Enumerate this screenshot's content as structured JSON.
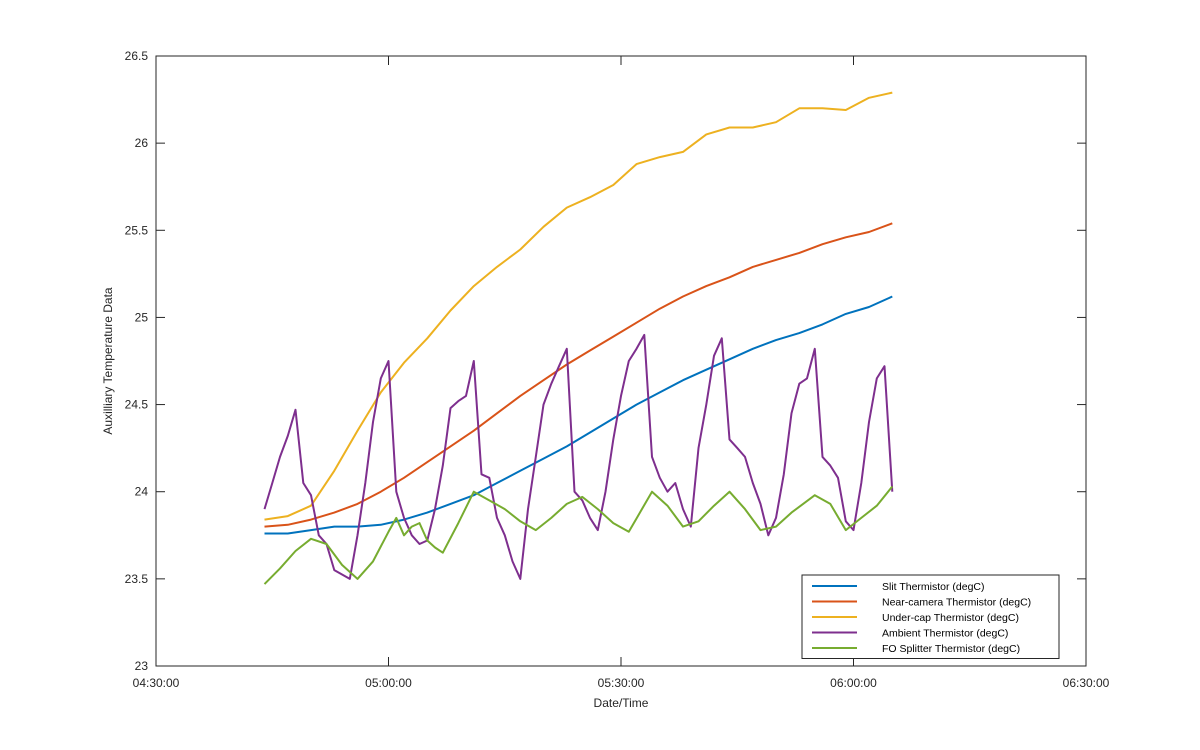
{
  "chart_data": {
    "type": "line",
    "title": "",
    "xlabel": "Date/Time",
    "ylabel": "Auxilliary Temperature Data",
    "xlim": [
      "04:30:00",
      "06:30:00"
    ],
    "ylim": [
      23,
      26.5
    ],
    "x_ticks": [
      "04:30:00",
      "05:00:00",
      "05:30:00",
      "06:00:00",
      "06:30:00"
    ],
    "y_ticks": [
      "23",
      "23.5",
      "24",
      "24.5",
      "25",
      "25.5",
      "26",
      "26.5"
    ],
    "grid": false,
    "legend_position": "bottom-right",
    "series": [
      {
        "name": "Slit Thermistor (degC)",
        "color": "#0072BD",
        "x": [
          "04:44:00",
          "04:47:00",
          "04:50:00",
          "04:53:00",
          "04:56:00",
          "04:59:00",
          "05:02:00",
          "05:05:00",
          "05:08:00",
          "05:11:00",
          "05:14:00",
          "05:17:00",
          "05:20:00",
          "05:23:00",
          "05:26:00",
          "05:29:00",
          "05:32:00",
          "05:35:00",
          "05:38:00",
          "05:41:00",
          "05:44:00",
          "05:47:00",
          "05:50:00",
          "05:53:00",
          "05:56:00",
          "05:59:00",
          "06:02:00",
          "06:05:00"
        ],
        "values": [
          23.76,
          23.76,
          23.78,
          23.8,
          23.8,
          23.81,
          23.84,
          23.88,
          23.93,
          23.98,
          24.05,
          24.12,
          24.19,
          24.26,
          24.34,
          24.42,
          24.5,
          24.57,
          24.64,
          24.7,
          24.76,
          24.82,
          24.87,
          24.91,
          24.96,
          25.02,
          25.06,
          25.12
        ]
      },
      {
        "name": "Near-camera Thermistor (degC)",
        "color": "#D95319",
        "x": [
          "04:44:00",
          "04:47:00",
          "04:50:00",
          "04:53:00",
          "04:56:00",
          "04:59:00",
          "05:02:00",
          "05:05:00",
          "05:08:00",
          "05:11:00",
          "05:14:00",
          "05:17:00",
          "05:20:00",
          "05:23:00",
          "05:26:00",
          "05:29:00",
          "05:32:00",
          "05:35:00",
          "05:38:00",
          "05:41:00",
          "05:44:00",
          "05:47:00",
          "05:50:00",
          "05:53:00",
          "05:56:00",
          "05:59:00",
          "06:02:00",
          "06:05:00"
        ],
        "values": [
          23.8,
          23.81,
          23.84,
          23.88,
          23.93,
          24.0,
          24.08,
          24.17,
          24.26,
          24.35,
          24.45,
          24.55,
          24.64,
          24.73,
          24.81,
          24.89,
          24.97,
          25.05,
          25.12,
          25.18,
          25.23,
          25.29,
          25.33,
          25.37,
          25.42,
          25.46,
          25.49,
          25.54
        ]
      },
      {
        "name": "Under-cap Thermistor (degC)",
        "color": "#EDB120",
        "x": [
          "04:44:00",
          "04:47:00",
          "04:50:00",
          "04:53:00",
          "04:56:00",
          "04:59:00",
          "05:02:00",
          "05:05:00",
          "05:08:00",
          "05:11:00",
          "05:14:00",
          "05:17:00",
          "05:20:00",
          "05:23:00",
          "05:26:00",
          "05:29:00",
          "05:32:00",
          "05:35:00",
          "05:38:00",
          "05:41:00",
          "05:44:00",
          "05:47:00",
          "05:50:00",
          "05:53:00",
          "05:56:00",
          "05:59:00",
          "06:02:00",
          "06:05:00"
        ],
        "values": [
          23.84,
          23.86,
          23.92,
          24.12,
          24.35,
          24.57,
          24.74,
          24.88,
          25.04,
          25.18,
          25.29,
          25.39,
          25.52,
          25.63,
          25.69,
          25.76,
          25.88,
          25.92,
          25.95,
          26.05,
          26.09,
          26.09,
          26.12,
          26.2,
          26.2,
          26.19,
          26.26,
          26.29
        ]
      },
      {
        "name": "Ambient Thermistor (degC)",
        "color": "#7E2F8E",
        "x": [
          "04:44:00",
          "04:45:00",
          "04:46:00",
          "04:47:00",
          "04:48:00",
          "04:49:00",
          "04:50:00",
          "04:51:00",
          "04:52:00",
          "04:53:00",
          "04:55:00",
          "04:56:00",
          "04:57:00",
          "04:58:00",
          "04:59:00",
          "05:00:00",
          "05:01:00",
          "05:02:00",
          "05:03:00",
          "05:04:00",
          "05:05:00",
          "05:06:00",
          "05:07:00",
          "05:08:00",
          "05:09:00",
          "05:10:00",
          "05:11:00",
          "05:12:00",
          "05:13:00",
          "05:14:00",
          "05:15:00",
          "05:16:00",
          "05:17:00",
          "05:18:00",
          "05:19:00",
          "05:20:00",
          "05:21:00",
          "05:22:00",
          "05:23:00",
          "05:24:00",
          "05:25:00",
          "05:26:00",
          "05:27:00",
          "05:28:00",
          "05:29:00",
          "05:30:00",
          "05:31:00",
          "05:32:00",
          "05:33:00",
          "05:34:00",
          "05:35:00",
          "05:36:00",
          "05:37:00",
          "05:38:00",
          "05:39:00",
          "05:40:00",
          "05:41:00",
          "05:42:00",
          "05:43:00",
          "05:44:00",
          "05:45:00",
          "05:46:00",
          "05:47:00",
          "05:48:00",
          "05:49:00",
          "05:50:00",
          "05:51:00",
          "05:52:00",
          "05:53:00",
          "05:54:00",
          "05:55:00",
          "05:56:00",
          "05:57:00",
          "05:58:00",
          "05:59:00",
          "06:00:00",
          "06:01:00",
          "06:02:00",
          "06:03:00",
          "06:04:00",
          "06:05:00"
        ],
        "values": [
          23.9,
          24.05,
          24.2,
          24.32,
          24.47,
          24.05,
          23.98,
          23.75,
          23.7,
          23.55,
          23.5,
          23.75,
          24.05,
          24.4,
          24.65,
          24.75,
          24.0,
          23.85,
          23.75,
          23.7,
          23.72,
          23.9,
          24.15,
          24.48,
          24.52,
          24.55,
          24.75,
          24.1,
          24.08,
          23.85,
          23.75,
          23.6,
          23.5,
          23.9,
          24.2,
          24.5,
          24.62,
          24.72,
          24.82,
          24.0,
          23.95,
          23.85,
          23.78,
          24.0,
          24.3,
          24.55,
          24.75,
          24.82,
          24.9,
          24.2,
          24.08,
          24.0,
          24.05,
          23.9,
          23.8,
          24.25,
          24.5,
          24.78,
          24.88,
          24.3,
          24.25,
          24.2,
          24.05,
          23.93,
          23.75,
          23.85,
          24.1,
          24.45,
          24.62,
          24.65,
          24.82,
          24.2,
          24.15,
          24.08,
          23.83,
          23.78,
          24.05,
          24.4,
          24.65,
          24.72,
          24.0
        ]
      },
      {
        "name": "FO Splitter Thermistor (degC)",
        "color": "#77AC30",
        "x": [
          "04:44:00",
          "04:46:00",
          "04:48:00",
          "04:50:00",
          "04:52:00",
          "04:54:00",
          "04:56:00",
          "04:58:00",
          "05:00:00",
          "05:01:00",
          "05:02:00",
          "05:03:00",
          "05:04:00",
          "05:05:00",
          "05:06:00",
          "05:07:00",
          "05:09:00",
          "05:11:00",
          "05:13:00",
          "05:15:00",
          "05:17:00",
          "05:19:00",
          "05:21:00",
          "05:23:00",
          "05:25:00",
          "05:27:00",
          "05:29:00",
          "05:31:00",
          "05:34:00",
          "05:36:00",
          "05:38:00",
          "05:40:00",
          "05:42:00",
          "05:44:00",
          "05:46:00",
          "05:48:00",
          "05:50:00",
          "05:52:00",
          "05:55:00",
          "05:57:00",
          "05:59:00",
          "06:01:00",
          "06:03:00",
          "06:05:00"
        ],
        "values": [
          23.47,
          23.56,
          23.66,
          23.73,
          23.7,
          23.58,
          23.5,
          23.6,
          23.77,
          23.85,
          23.75,
          23.8,
          23.82,
          23.72,
          23.68,
          23.65,
          23.82,
          24.0,
          23.95,
          23.9,
          23.83,
          23.78,
          23.85,
          23.93,
          23.97,
          23.9,
          23.82,
          23.77,
          24.0,
          23.92,
          23.8,
          23.83,
          23.92,
          24.0,
          23.9,
          23.78,
          23.8,
          23.88,
          23.98,
          23.93,
          23.78,
          23.85,
          23.92,
          24.03
        ]
      }
    ]
  }
}
